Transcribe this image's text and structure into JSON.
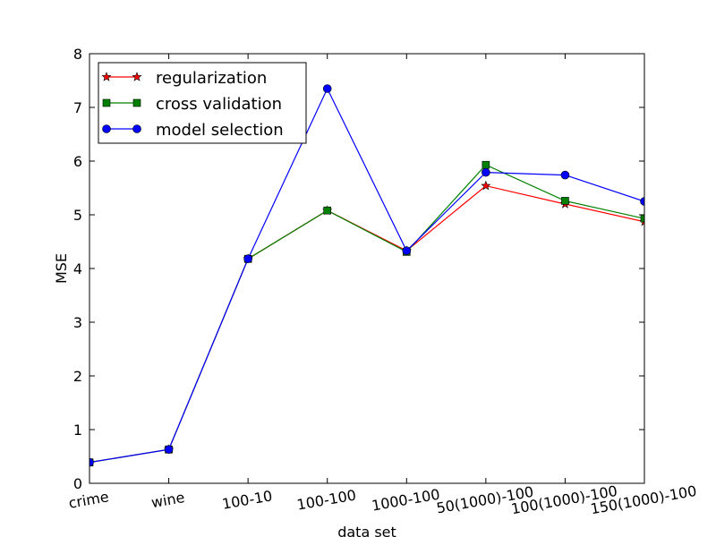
{
  "chart_data": {
    "type": "line",
    "x_label": "data set",
    "y_label": "MSE",
    "categories": [
      "crime",
      "wine",
      "100-10",
      "100-100",
      "1000-100",
      "50(1000)-100",
      "100(1000)-100",
      "150(1000)-100"
    ],
    "series": [
      {
        "name": "regularization",
        "color": "#ff0000",
        "marker": "star",
        "values": [
          0.39,
          0.63,
          4.18,
          5.08,
          4.33,
          5.54,
          5.2,
          4.87
        ]
      },
      {
        "name": "cross validation",
        "color": "#008000",
        "marker": "square",
        "values": [
          0.39,
          0.63,
          4.18,
          5.08,
          4.31,
          5.93,
          5.26,
          4.93
        ]
      },
      {
        "name": "model selection",
        "color": "#0000ff",
        "marker": "circle",
        "values": [
          0.39,
          0.63,
          4.18,
          7.35,
          4.33,
          5.79,
          5.74,
          5.25
        ]
      }
    ],
    "ylim": [
      0,
      8
    ],
    "yticks": [
      0,
      1,
      2,
      3,
      4,
      5,
      6,
      7,
      8
    ],
    "grid": false,
    "legend": "upper left"
  }
}
